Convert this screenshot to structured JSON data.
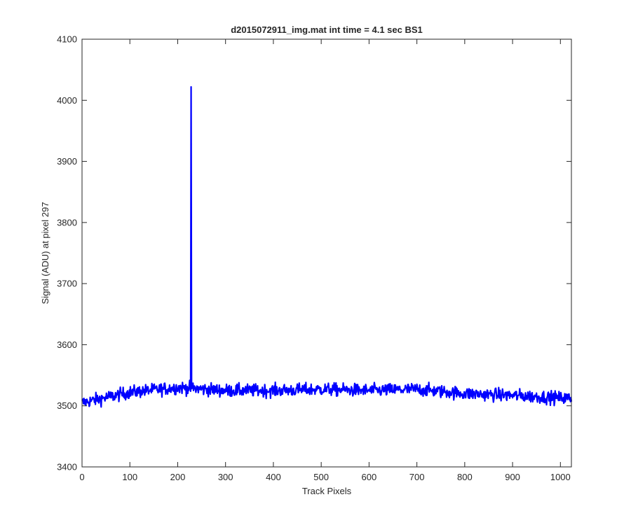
{
  "chart_data": {
    "type": "line",
    "title": "d2015072911_img.mat int time = 4.1 sec   BS1",
    "xlabel": "Track Pixels",
    "ylabel": "Signal (ADU) at pixel 297",
    "xlim": [
      0,
      1023
    ],
    "ylim": [
      3400,
      4100
    ],
    "xticks": [
      0,
      100,
      200,
      300,
      400,
      500,
      600,
      700,
      800,
      900,
      1000
    ],
    "yticks": [
      3400,
      3500,
      3600,
      3700,
      3800,
      3900,
      4000,
      4100
    ],
    "grid": false,
    "legend": "none",
    "series": [
      {
        "color": "#0000ff",
        "description": "noisy baseline ~3520 ADU (slight downward drift to ~3512 at right edge) with a single spike to ~4022 ADU at x≈228",
        "baseline_points": [
          [
            0,
            3505
          ],
          [
            100,
            3522
          ],
          [
            200,
            3530
          ],
          [
            300,
            3525
          ],
          [
            400,
            3525
          ],
          [
            500,
            3527
          ],
          [
            600,
            3525
          ],
          [
            700,
            3527
          ],
          [
            800,
            3520
          ],
          [
            900,
            3517
          ],
          [
            1023,
            3512
          ]
        ],
        "spike": {
          "x": 228,
          "y": 4022
        },
        "noise_amplitude": 18,
        "n_points": 1024
      }
    ]
  }
}
